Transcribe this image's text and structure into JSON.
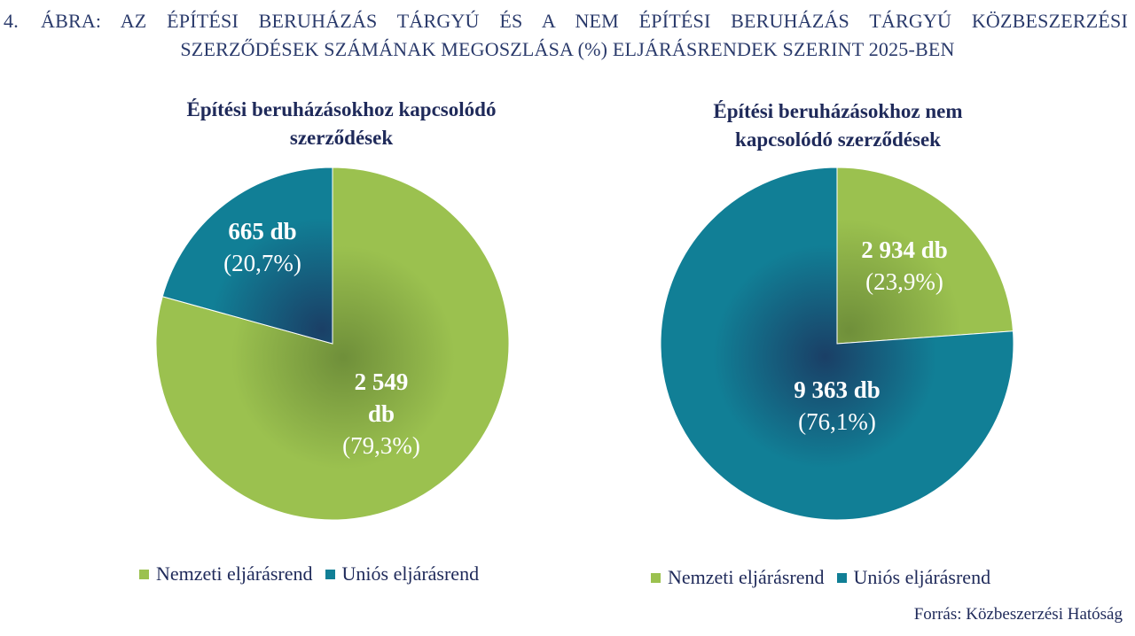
{
  "figure": {
    "number": "4.",
    "title_line1": "ÁBRA: AZ ÉPÍTÉSI BERUHÁZÁS TÁRGYÚ ÉS A NEM ÉPÍTÉSI BERUHÁZÁS TÁRGYÚ KÖZBESZERZÉSI",
    "title_line2": "SZERZŐDÉSEK SZÁMÁNAK MEGOSZLÁSA (%) ELJÁRÁSRENDEK SZERINT 2025-BEN",
    "source": "Forrás: Közbeszerzési Hatóság"
  },
  "colors": {
    "nemzeti": "#9bc14f",
    "nemzeti_dark": "#6f8f3a",
    "unios": "#117f96",
    "unios_dark": "#1a3f66",
    "label_text": "#ffffff"
  },
  "chart_data": [
    {
      "type": "pie",
      "title_line1": "Építési beruházásokhoz kapcsolódó",
      "title_line2": "szerződések",
      "legend": [
        "Nemzeti eljárásrend",
        "Uniós eljárásrend"
      ],
      "slices": [
        {
          "name": "Nemzeti eljárásrend",
          "value": 2549,
          "percent": 79.3,
          "label_count_line1": "2 549",
          "label_count_line2": "db",
          "label_percent": "(79,3%)"
        },
        {
          "name": "Uniós eljárásrend",
          "value": 665,
          "percent": 20.7,
          "label_count_line1": "665 db",
          "label_percent": "(20,7%)"
        }
      ]
    },
    {
      "type": "pie",
      "title_line1": "Építési beruházásokhoz nem",
      "title_line2": "kapcsolódó szerződések",
      "legend": [
        "Nemzeti eljárásrend",
        "Uniós eljárásrend"
      ],
      "slices": [
        {
          "name": "Nemzeti eljárásrend",
          "value": 2934,
          "percent": 23.9,
          "label_count_line1": "2 934 db",
          "label_percent": "(23,9%)"
        },
        {
          "name": "Uniós eljárásrend",
          "value": 9363,
          "percent": 76.1,
          "label_count_line1": "9 363 db",
          "label_percent": "(76,1%)"
        }
      ]
    }
  ]
}
